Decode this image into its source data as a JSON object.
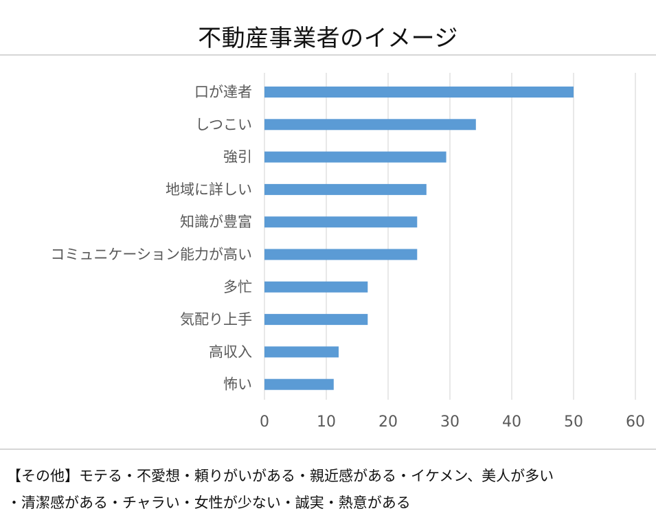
{
  "title": "不動産事業者のイメージ",
  "chart_data": {
    "type": "bar",
    "orientation": "horizontal",
    "categories": [
      "口が達者",
      "しつこい",
      "強引",
      "地域に詳しい",
      "知識が豊富",
      "コミュニケーション能力が高い",
      "多忙",
      "気配り上手",
      "高収入",
      "怖い"
    ],
    "values": [
      50,
      34.2,
      29.4,
      26.2,
      24.7,
      24.7,
      16.7,
      16.7,
      12.0,
      11.2
    ],
    "xlim": [
      0,
      60
    ],
    "xticks": [
      0,
      10,
      20,
      30,
      40,
      50,
      60
    ],
    "grid": "vertical",
    "bar_color": "#5B9BD5",
    "gridline_color": "#D9D9D9",
    "legend": "none"
  },
  "note": {
    "line1": "【その他】モテる・不愛想・頼りがいがある・親近感がある・イケメン、美人が多い",
    "line2": "・清潔感がある・チャラい・女性が少ない・誠実・熱意がある"
  }
}
